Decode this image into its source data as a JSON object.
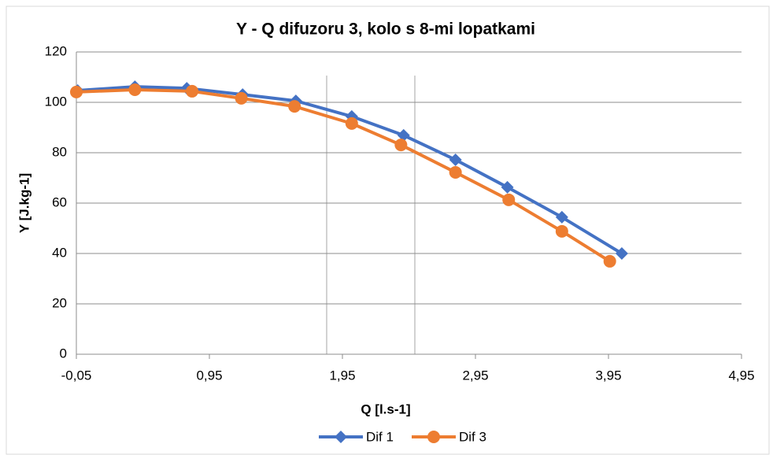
{
  "chart_data": {
    "type": "line",
    "title": "Y - Q difuzoru 3, kolo s 8-mi lopatkami",
    "xlabel": "Q [l.s-1]",
    "ylabel": "Y [J.kg-1]",
    "xlim": [
      -0.05,
      4.95
    ],
    "xticks": [
      {
        "value": -0.05,
        "label": "-0,05"
      },
      {
        "value": 0.95,
        "label": "0,95"
      },
      {
        "value": 1.95,
        "label": "1,95"
      },
      {
        "value": 2.95,
        "label": "2,95"
      },
      {
        "value": 3.95,
        "label": "3,95"
      },
      {
        "value": 4.95,
        "label": "4,95"
      }
    ],
    "ylim": [
      0,
      120
    ],
    "yticks": [
      0,
      20,
      40,
      60,
      80,
      100,
      120
    ],
    "grid": true,
    "legend": "bottom",
    "series": [
      {
        "name": "Dif 1",
        "color": "#4472c4",
        "marker": "diamond",
        "x": [
          -0.04,
          0.39,
          0.78,
          1.2,
          1.6,
          2.02,
          2.41,
          2.8,
          3.19,
          3.6,
          4.05
        ],
        "values": [
          104.7,
          106.2,
          105.6,
          103.1,
          100.6,
          94.4,
          86.9,
          77.2,
          66.3,
          54.4,
          40
        ]
      },
      {
        "name": "Dif 3",
        "color": "#ed7d31",
        "marker": "circle",
        "x": [
          -0.05,
          0.39,
          0.82,
          1.19,
          1.59,
          2.02,
          2.39,
          2.8,
          3.2,
          3.6,
          3.96
        ],
        "values": [
          104.1,
          105,
          104.4,
          101.6,
          98.4,
          91.6,
          83.1,
          72.2,
          61.3,
          48.8,
          36.9
        ]
      }
    ]
  }
}
